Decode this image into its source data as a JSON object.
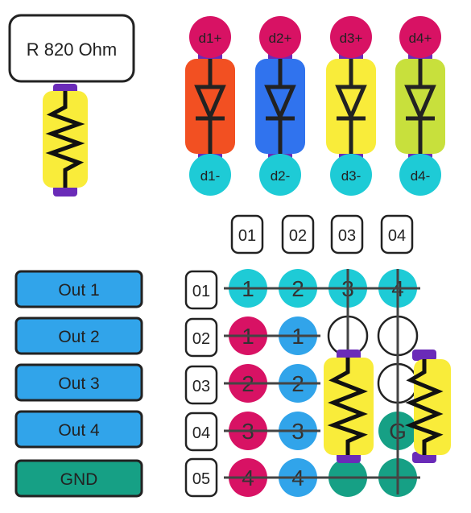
{
  "resistor_label": "R 820 Ohm",
  "diodes": [
    {
      "top": "d1+",
      "bottom": "d1-",
      "color": "#f25022"
    },
    {
      "top": "d2+",
      "bottom": "d2-",
      "color": "#3073ee"
    },
    {
      "top": "d3+",
      "bottom": "d3-",
      "color": "#f9ec3a"
    },
    {
      "top": "d4+",
      "bottom": "d4-",
      "color": "#c8e03c"
    }
  ],
  "column_headers": [
    "01",
    "02",
    "03",
    "04"
  ],
  "row_headers": [
    "01",
    "02",
    "03",
    "04",
    "05"
  ],
  "buttons": [
    {
      "label": "Out 1",
      "color": "#31a4ea"
    },
    {
      "label": "Out 2",
      "color": "#31a4ea"
    },
    {
      "label": "Out 3",
      "color": "#31a4ea"
    },
    {
      "label": "Out 4",
      "color": "#31a4ea"
    },
    {
      "label": "GND",
      "color": "#16a085"
    }
  ],
  "grid": [
    [
      {
        "text": "1",
        "fill": "cyan"
      },
      {
        "text": "2",
        "fill": "cyan"
      },
      {
        "text": "3",
        "fill": "cyan"
      },
      {
        "text": "4",
        "fill": "cyan"
      }
    ],
    [
      {
        "text": "1",
        "fill": "magenta"
      },
      {
        "text": "1",
        "fill": "blue"
      },
      {
        "text": "",
        "fill": "white"
      },
      {
        "text": "",
        "fill": "white"
      }
    ],
    [
      {
        "text": "2",
        "fill": "magenta"
      },
      {
        "text": "2",
        "fill": "blue"
      },
      {
        "text": "",
        "fill": "teal"
      },
      {
        "text": "",
        "fill": "white"
      }
    ],
    [
      {
        "text": "3",
        "fill": "magenta"
      },
      {
        "text": "3",
        "fill": "blue"
      },
      {
        "text": "",
        "fill": "teal"
      },
      {
        "text": "G",
        "fill": "teal"
      }
    ],
    [
      {
        "text": "4",
        "fill": "magenta"
      },
      {
        "text": "4",
        "fill": "blue"
      },
      {
        "text": "",
        "fill": "teal"
      },
      {
        "text": "",
        "fill": "teal"
      }
    ]
  ],
  "colors": {
    "cyan": "#1ecbd6",
    "magenta": "#d81264",
    "blue": "#31a4ea",
    "teal": "#16a085",
    "white": "#ffffff",
    "purple": "#6a2bb8",
    "yellow": "#f9ec3a",
    "line": "#444444"
  }
}
